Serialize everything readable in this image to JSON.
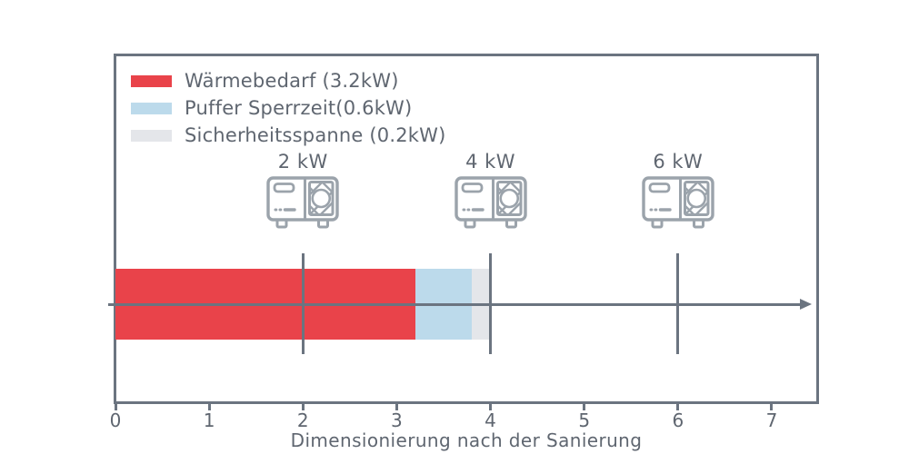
{
  "chart_data": {
    "type": "bar",
    "orientation": "horizontal",
    "title": "",
    "xlabel": "Dimensionierung nach der Sanierung",
    "ylabel": "",
    "xlim": [
      0,
      7.5
    ],
    "x_ticks": [
      "0",
      "1",
      "2",
      "3",
      "4",
      "5",
      "6",
      "7"
    ],
    "grid": false,
    "legend_position": "upper left",
    "series": [
      {
        "name": "Wärmebedarf (3.2kW)",
        "value": 3.2,
        "color": "#e9434a"
      },
      {
        "name": "Puffer Sperrzeit(0.6kW)",
        "value": 0.6,
        "color": "#bcdaeb"
      },
      {
        "name": "Sicherheitsspanne (0.2kW)",
        "value": 0.2,
        "color": "#e4e6ea"
      }
    ],
    "bar_total": 4.0,
    "markers": [
      {
        "label": "2 kW",
        "value": 2,
        "icon": "heat-pump-icon"
      },
      {
        "label": "4 kW",
        "value": 4,
        "icon": "heat-pump-icon"
      },
      {
        "label": "6 kW",
        "value": 6,
        "icon": "heat-pump-icon"
      }
    ]
  },
  "colors": {
    "axis": "#6b7480",
    "text": "#5f6670",
    "icon_stroke": "#9ba3ab",
    "bar_red": "#e9434a",
    "bar_blue": "#bcdaeb",
    "bar_gray": "#e4e6ea",
    "background": "#ffffff"
  }
}
